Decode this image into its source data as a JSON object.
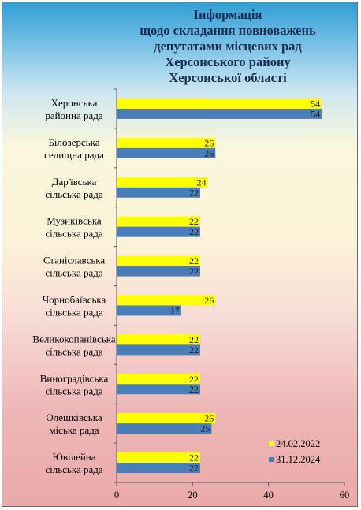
{
  "chart_data": {
    "type": "bar",
    "orientation": "horizontal",
    "title_lines": [
      "Інформація",
      "щодо складання повноважень",
      "депутатами місцевих рад",
      "Херсонського району",
      "Херсонської області"
    ],
    "categories": [
      [
        "Херонська",
        "районна рада"
      ],
      [
        "Білозерська",
        "селищна рада"
      ],
      [
        "Дар'ївська",
        "сільська рада"
      ],
      [
        "Музиківська",
        "сільська рада"
      ],
      [
        "Станіславська",
        "сільська рада"
      ],
      [
        "Чорнобаївська",
        "сільська рада"
      ],
      [
        "Великокопанівська",
        "сільська рада"
      ],
      [
        "Виноградівська",
        "сільська рада"
      ],
      [
        "Олешківська",
        "міська рада"
      ],
      [
        "Ювілейна",
        "сільська рада"
      ]
    ],
    "series": [
      {
        "name": "24.02.2022",
        "color": "#ffff00",
        "values": [
          54,
          26,
          24,
          22,
          22,
          26,
          22,
          22,
          26,
          22
        ]
      },
      {
        "name": "31.12.2024",
        "color": "#4a7ebb",
        "values": [
          54,
          26,
          22,
          22,
          22,
          17,
          22,
          22,
          25,
          22
        ]
      }
    ],
    "xlim": [
      0,
      60
    ],
    "x_ticks": [
      0,
      20,
      40,
      60
    ],
    "grid": false,
    "legend_position": "bottom-right"
  }
}
